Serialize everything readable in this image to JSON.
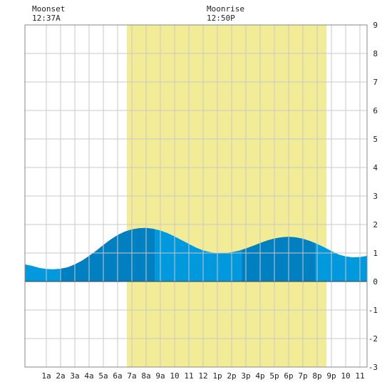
{
  "chart_data": {
    "type": "area",
    "title": "",
    "xlabel": "",
    "ylabel": "",
    "x_unit": "hours from midnight",
    "xlim": [
      -0.5,
      23.5
    ],
    "ylim": [
      -3,
      9
    ],
    "grid": true,
    "x_tick_labels": [
      "1a",
      "2a",
      "3a",
      "4a",
      "5a",
      "6a",
      "7a",
      "8a",
      "9a",
      "10",
      "11",
      "12",
      "1p",
      "2p",
      "3p",
      "4p",
      "5p",
      "6p",
      "7p",
      "8p",
      "9p",
      "10",
      "11"
    ],
    "x_tick_hours": [
      1,
      2,
      3,
      4,
      5,
      6,
      7,
      8,
      9,
      10,
      11,
      12,
      13,
      14,
      15,
      16,
      17,
      18,
      19,
      20,
      21,
      22,
      23
    ],
    "y_ticks": [
      9,
      8,
      7,
      6,
      5,
      4,
      3,
      2,
      1,
      0,
      -1,
      -2,
      -3
    ],
    "daylight": {
      "start": 6.65,
      "end": 20.65,
      "color": "#f2ec96"
    },
    "tide_colors": {
      "light": "#0099dd",
      "dark": "#0080c0"
    },
    "tide_points": {
      "x": [
        -0.5,
        0,
        0.5,
        1,
        1.5,
        2,
        2.5,
        3,
        3.5,
        4,
        4.5,
        5,
        5.5,
        6,
        6.5,
        7,
        7.5,
        8,
        8.5,
        9,
        9.5,
        10,
        10.5,
        11,
        11.5,
        12,
        12.5,
        13,
        13.5,
        14,
        14.5,
        15,
        15.5,
        16,
        16.5,
        17,
        17.5,
        18,
        18.5,
        19,
        19.5,
        20,
        20.5,
        21,
        21.5,
        22,
        22.5,
        23,
        23.5
      ],
      "y": [
        0.6,
        0.55,
        0.48,
        0.44,
        0.43,
        0.45,
        0.5,
        0.6,
        0.73,
        0.9,
        1.08,
        1.28,
        1.47,
        1.63,
        1.75,
        1.83,
        1.87,
        1.88,
        1.85,
        1.79,
        1.7,
        1.58,
        1.45,
        1.32,
        1.19,
        1.09,
        1.03,
        1.0,
        1.0,
        1.03,
        1.08,
        1.16,
        1.25,
        1.35,
        1.44,
        1.51,
        1.55,
        1.57,
        1.55,
        1.5,
        1.42,
        1.32,
        1.2,
        1.07,
        0.95,
        0.88,
        0.85,
        0.86,
        0.9
      ]
    },
    "dark_bands": [
      [
        1.95,
        8.6
      ],
      [
        14.7,
        19.85
      ]
    ],
    "annotations": [
      {
        "label": "Moonset",
        "time": "12:37A"
      },
      {
        "label": "Moonrise",
        "time": "12:50P"
      }
    ]
  }
}
